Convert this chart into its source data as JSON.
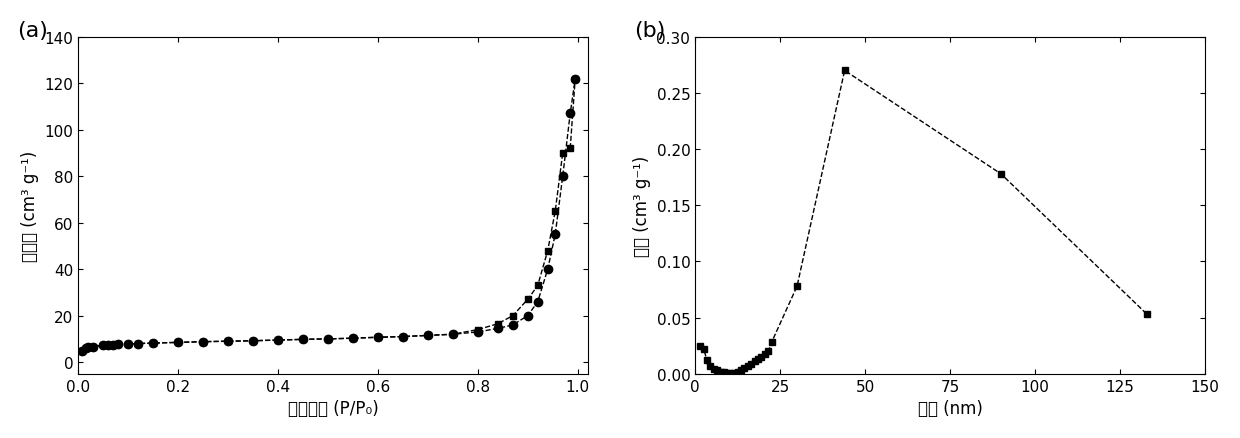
{
  "panel_a": {
    "label": "(a)",
    "xlabel": "相对压力 (P/P₀)",
    "ylabel": "吸附量 (cm³ g⁻¹)",
    "xlim": [
      0.0,
      1.02
    ],
    "ylim": [
      -5,
      140
    ],
    "yticks": [
      0,
      20,
      40,
      60,
      80,
      100,
      120,
      140
    ],
    "xticks": [
      0.0,
      0.2,
      0.4,
      0.6,
      0.8,
      1.0
    ],
    "adsorption_x": [
      0.008,
      0.015,
      0.02,
      0.03,
      0.05,
      0.06,
      0.07,
      0.08,
      0.1,
      0.12,
      0.15,
      0.2,
      0.25,
      0.3,
      0.35,
      0.4,
      0.45,
      0.5,
      0.55,
      0.6,
      0.65,
      0.7,
      0.75,
      0.8,
      0.84,
      0.87,
      0.9,
      0.92,
      0.94,
      0.955,
      0.97,
      0.985,
      0.995
    ],
    "adsorption_y": [
      5.0,
      6.0,
      6.3,
      6.7,
      7.2,
      7.4,
      7.5,
      7.6,
      7.8,
      8.0,
      8.2,
      8.5,
      8.8,
      9.0,
      9.2,
      9.5,
      9.8,
      10.0,
      10.3,
      10.7,
      11.0,
      11.5,
      12.0,
      13.0,
      14.5,
      16.0,
      20.0,
      26.0,
      40.0,
      55.0,
      80.0,
      107.0,
      122.0
    ],
    "desorption_x": [
      0.008,
      0.015,
      0.02,
      0.03,
      0.05,
      0.06,
      0.07,
      0.08,
      0.1,
      0.12,
      0.15,
      0.2,
      0.25,
      0.3,
      0.35,
      0.4,
      0.45,
      0.5,
      0.55,
      0.6,
      0.65,
      0.7,
      0.75,
      0.8,
      0.84,
      0.87,
      0.9,
      0.92,
      0.94,
      0.955,
      0.97,
      0.985,
      0.995
    ],
    "desorption_y": [
      5.0,
      6.0,
      6.3,
      6.7,
      7.2,
      7.4,
      7.5,
      7.6,
      7.8,
      8.0,
      8.2,
      8.5,
      8.8,
      9.0,
      9.2,
      9.5,
      9.8,
      10.0,
      10.3,
      10.7,
      11.0,
      11.5,
      12.0,
      14.0,
      16.5,
      20.0,
      27.0,
      33.0,
      48.0,
      65.0,
      90.0,
      92.0,
      122.0
    ]
  },
  "panel_b": {
    "label": "(b)",
    "xlabel": "孔径 (nm)",
    "ylabel": "孔容 (cm³ g⁻¹)",
    "xlim": [
      0,
      150
    ],
    "ylim": [
      0,
      0.3
    ],
    "yticks": [
      0.0,
      0.05,
      0.1,
      0.15,
      0.2,
      0.25,
      0.3
    ],
    "xticks": [
      0,
      25,
      50,
      75,
      100,
      125,
      150
    ],
    "x": [
      1.5,
      2.5,
      3.5,
      4.5,
      5.5,
      6.5,
      7.5,
      8.5,
      9.5,
      10.5,
      11.5,
      12.5,
      13.5,
      14.5,
      15.5,
      16.5,
      17.5,
      18.5,
      19.5,
      20.5,
      21.5,
      22.5,
      30.0,
      44.0,
      90.0,
      133.0
    ],
    "y": [
      0.025,
      0.022,
      0.012,
      0.007,
      0.004,
      0.003,
      0.002,
      0.002,
      0.001,
      0.001,
      0.001,
      0.002,
      0.003,
      0.005,
      0.007,
      0.009,
      0.011,
      0.013,
      0.015,
      0.018,
      0.02,
      0.028,
      0.078,
      0.27,
      0.178,
      0.053
    ]
  },
  "background_color": "#ffffff",
  "line_color": "#000000",
  "marker_square": "s",
  "marker_circle": "o",
  "marker_size_sq": 5,
  "marker_size_circ": 6,
  "line_style_dashed": "--",
  "line_width": 1.0,
  "font_size_label": 12,
  "font_size_panel": 14,
  "font_size_tick": 11
}
